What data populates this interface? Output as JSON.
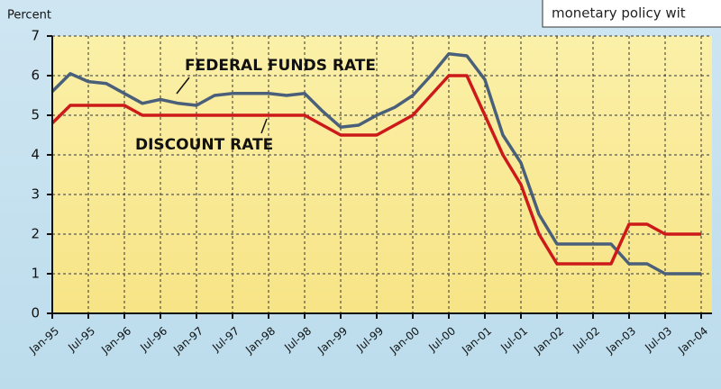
{
  "chart_data": {
    "type": "line",
    "y_label": "Percent",
    "note": "monetary policy wit",
    "categories": [
      "Jan-95",
      null,
      "Jul-95",
      null,
      "Jan-96",
      null,
      "Jul-96",
      null,
      "Jan-97",
      null,
      "Jul-97",
      null,
      "Jan-98",
      null,
      "Jul-98",
      null,
      "Jan-99",
      null,
      "Jul-99",
      null,
      "Jan-00",
      null,
      "Jul-00",
      null,
      "Jan-01",
      null,
      "Jul-01",
      null,
      "Jan-02",
      null,
      "Jul-02",
      null,
      "Jan-03",
      null,
      "Jul-03",
      null,
      "Jan-04"
    ],
    "series": [
      {
        "name": "FEDERAL FUNDS RATE",
        "color": "#4a5f7a",
        "values": [
          5.6,
          6.05,
          5.85,
          5.8,
          5.55,
          5.3,
          5.4,
          5.3,
          5.25,
          5.5,
          5.55,
          5.55,
          5.55,
          5.5,
          5.55,
          5.1,
          4.7,
          4.75,
          5.0,
          5.2,
          5.5,
          6.0,
          6.55,
          6.5,
          5.9,
          4.5,
          3.8,
          2.5,
          1.75,
          1.75,
          1.75,
          1.75,
          1.25,
          1.25,
          1.0,
          1.0,
          1.0
        ]
      },
      {
        "name": "DISCOUNT RATE",
        "color": "#cc1a1a",
        "values": [
          4.8,
          5.25,
          5.25,
          5.25,
          5.25,
          5.0,
          5.0,
          5.0,
          5.0,
          5.0,
          5.0,
          5.0,
          5.0,
          5.0,
          5.0,
          4.75,
          4.5,
          4.5,
          4.5,
          4.75,
          5.0,
          5.5,
          6.0,
          6.0,
          5.0,
          4.0,
          3.25,
          2.0,
          1.25,
          1.25,
          1.25,
          1.25,
          2.25,
          2.25,
          2.0,
          2.0,
          2.0
        ]
      }
    ],
    "ylim": [
      0,
      7
    ],
    "yticks": [
      0,
      1,
      2,
      3,
      4,
      5,
      6,
      7
    ],
    "grid": true
  }
}
